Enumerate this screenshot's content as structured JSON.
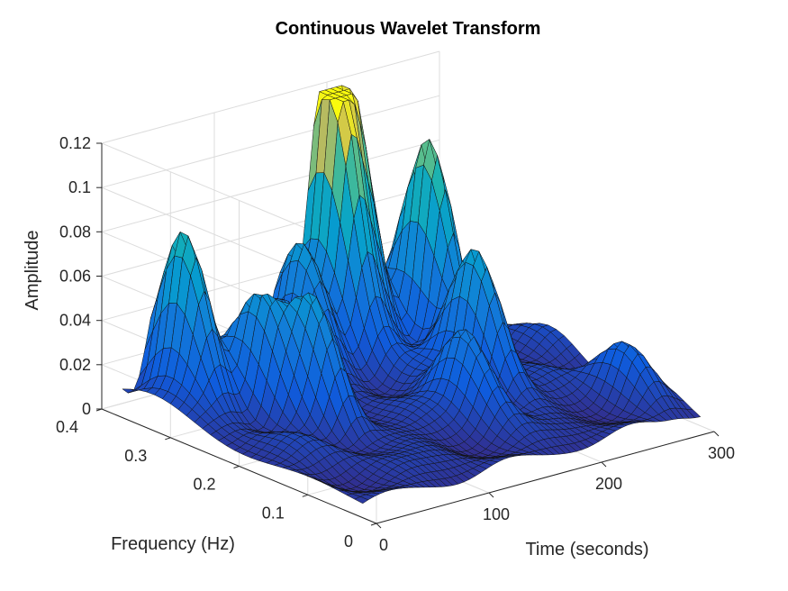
{
  "chart_data": {
    "type": "surface",
    "title": "Continuous Wavelet Transform",
    "xlabel": "Time (seconds)",
    "ylabel": "Frequency (Hz)",
    "zlabel": "Amplitude",
    "xlim": [
      0,
      300
    ],
    "ylim": [
      0,
      0.4
    ],
    "zlim": [
      0,
      0.12
    ],
    "xticks": [
      0,
      100,
      200,
      300
    ],
    "yticks": [
      0,
      0.1,
      0.2,
      0.3,
      0.4
    ],
    "zticks": [
      0,
      0.02,
      0.04,
      0.06,
      0.08,
      0.1,
      0.12
    ],
    "colormap": "parula",
    "grid": true,
    "peaks": [
      {
        "time": 175,
        "frequency": 0.35,
        "amplitude": 0.12
      },
      {
        "time": 195,
        "frequency": 0.36,
        "amplitude": 0.105
      },
      {
        "time": 230,
        "frequency": 0.3,
        "amplitude": 0.085
      },
      {
        "time": 30,
        "frequency": 0.33,
        "amplitude": 0.075
      },
      {
        "time": 210,
        "frequency": 0.2,
        "amplitude": 0.06
      },
      {
        "time": 140,
        "frequency": 0.34,
        "amplitude": 0.055
      },
      {
        "time": 60,
        "frequency": 0.27,
        "amplitude": 0.045
      },
      {
        "time": 80,
        "frequency": 0.22,
        "amplitude": 0.045
      },
      {
        "time": 170,
        "frequency": 0.15,
        "amplitude": 0.04
      },
      {
        "time": 100,
        "frequency": 0.3,
        "amplitude": 0.04
      },
      {
        "time": 280,
        "frequency": 0.1,
        "amplitude": 0.02
      }
    ]
  }
}
